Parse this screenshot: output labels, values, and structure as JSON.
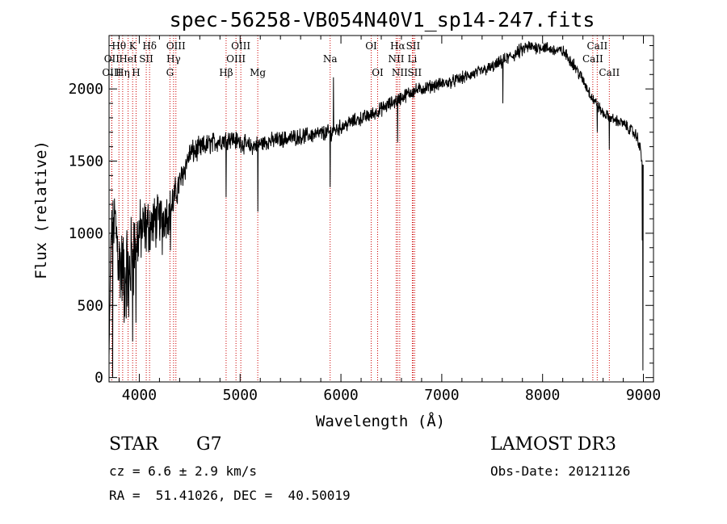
{
  "chart_data": {
    "type": "line",
    "title": "spec-56258-VB054N40V1_sp14-247.fits",
    "xlabel": "Wavelength (Å)",
    "ylabel": "Flux (relative)",
    "xlim": [
      3700,
      9100
    ],
    "ylim": [
      -30,
      2370
    ],
    "xticks": [
      4000,
      5000,
      6000,
      7000,
      8000,
      9000
    ],
    "xtick_labels": [
      "4000",
      "5000",
      "6000",
      "7000",
      "8000",
      "9000"
    ],
    "yticks": [
      0,
      500,
      1000,
      1500,
      2000
    ],
    "ytick_labels": [
      "0",
      "500",
      "1000",
      "1500",
      "2000"
    ],
    "continuum": {
      "x": [
        3700,
        3720,
        3760,
        3800,
        3850,
        3900,
        3950,
        4000,
        4100,
        4200,
        4300,
        4400,
        4500,
        4700,
        4900,
        5100,
        5300,
        5500,
        5700,
        5900,
        6100,
        6300,
        6500,
        6700,
        6900,
        7100,
        7300,
        7500,
        7700,
        7850,
        8000,
        8100,
        8200,
        8300,
        8400,
        8500,
        8600,
        8700,
        8800,
        8900,
        8950,
        9000
      ],
      "y": [
        150,
        1000,
        1100,
        800,
        700,
        750,
        900,
        1000,
        1050,
        1100,
        1150,
        1350,
        1550,
        1620,
        1660,
        1600,
        1640,
        1660,
        1680,
        1700,
        1770,
        1820,
        1900,
        1980,
        2020,
        2050,
        2100,
        2150,
        2230,
        2290,
        2290,
        2270,
        2260,
        2180,
        2060,
        1930,
        1830,
        1790,
        1760,
        1700,
        1650,
        1450
      ],
      "noise": [
        0,
        120,
        180,
        250,
        260,
        280,
        250,
        180,
        160,
        140,
        120,
        80,
        70,
        60,
        55,
        50,
        45,
        45,
        45,
        45,
        40,
        40,
        40,
        40,
        35,
        35,
        35,
        35,
        40,
        40,
        35,
        35,
        35,
        35,
        35,
        35,
        30,
        30,
        30,
        35,
        40,
        40
      ]
    },
    "features": [
      {
        "x": 3735,
        "y": 0
      },
      {
        "x": 3850,
        "y": 380
      },
      {
        "x": 3895,
        "y": 420
      },
      {
        "x": 3934,
        "y": 250
      },
      {
        "x": 3968,
        "y": 380
      },
      {
        "x": 4227,
        "y": 850
      },
      {
        "x": 4308,
        "y": 880
      },
      {
        "x": 4861,
        "y": 1250
      },
      {
        "x": 5175,
        "y": 1150
      },
      {
        "x": 5893,
        "y": 1320
      },
      {
        "x": 5925,
        "y": 2080
      },
      {
        "x": 6563,
        "y": 1630
      },
      {
        "x": 7605,
        "y": 1900
      },
      {
        "x": 8542,
        "y": 1700
      },
      {
        "x": 8662,
        "y": 1580
      },
      {
        "x": 8990,
        "y": 950
      },
      {
        "x": 8995,
        "y": 50
      }
    ],
    "lines": [
      {
        "name": "Hθ",
        "wave": 3798,
        "row": 1
      },
      {
        "name": "OII",
        "wave": 3727,
        "row": 2
      },
      {
        "name": "OIII",
        "wave": 3727,
        "row": 3
      },
      {
        "name": "K",
        "wave": 3934,
        "row": 1
      },
      {
        "name": "HeI",
        "wave": 3889,
        "row": 2
      },
      {
        "name": "Hη",
        "wave": 3835,
        "row": 3
      },
      {
        "name": "SII",
        "wave": 4069,
        "row": 2
      },
      {
        "name": "H",
        "wave": 3968,
        "row": 3
      },
      {
        "name": "Hδ",
        "wave": 4102,
        "row": 1
      },
      {
        "name": "OIII",
        "wave": 4363,
        "row": 1
      },
      {
        "name": "Hγ",
        "wave": 4340,
        "row": 2
      },
      {
        "name": "G",
        "wave": 4304,
        "row": 3
      },
      {
        "name": "OIII",
        "wave": 5007,
        "row": 1
      },
      {
        "name": "OIII",
        "wave": 4959,
        "row": 2
      },
      {
        "name": "Hβ",
        "wave": 4861,
        "row": 3
      },
      {
        "name": "Mg",
        "wave": 5175,
        "row": 3
      },
      {
        "name": "Na",
        "wave": 5893,
        "row": 2
      },
      {
        "name": "OI",
        "wave": 6300,
        "row": 1
      },
      {
        "name": "OI",
        "wave": 6364,
        "row": 3
      },
      {
        "name": "Hα",
        "wave": 6563,
        "row": 1
      },
      {
        "name": "SII",
        "wave": 6716,
        "row": 1
      },
      {
        "name": "NII",
        "wave": 6548,
        "row": 2
      },
      {
        "name": "Li",
        "wave": 6708,
        "row": 2
      },
      {
        "name": "NII",
        "wave": 6583,
        "row": 3
      },
      {
        "name": "SII",
        "wave": 6731,
        "row": 3
      },
      {
        "name": "CaII",
        "wave": 8542,
        "row": 1
      },
      {
        "name": "CaII",
        "wave": 8498,
        "row": 2
      },
      {
        "name": "CaII",
        "wave": 8662,
        "row": 3
      }
    ],
    "line_color": "#cc0000"
  },
  "info": {
    "object_class": "STAR",
    "subclass": "G7",
    "survey": "LAMOST DR3",
    "cz": "cz = 6.6 ± 2.9 km/s",
    "obs_date": "Obs-Date: 20121126",
    "coords": "RA =  51.41026, DEC =  40.50019"
  }
}
